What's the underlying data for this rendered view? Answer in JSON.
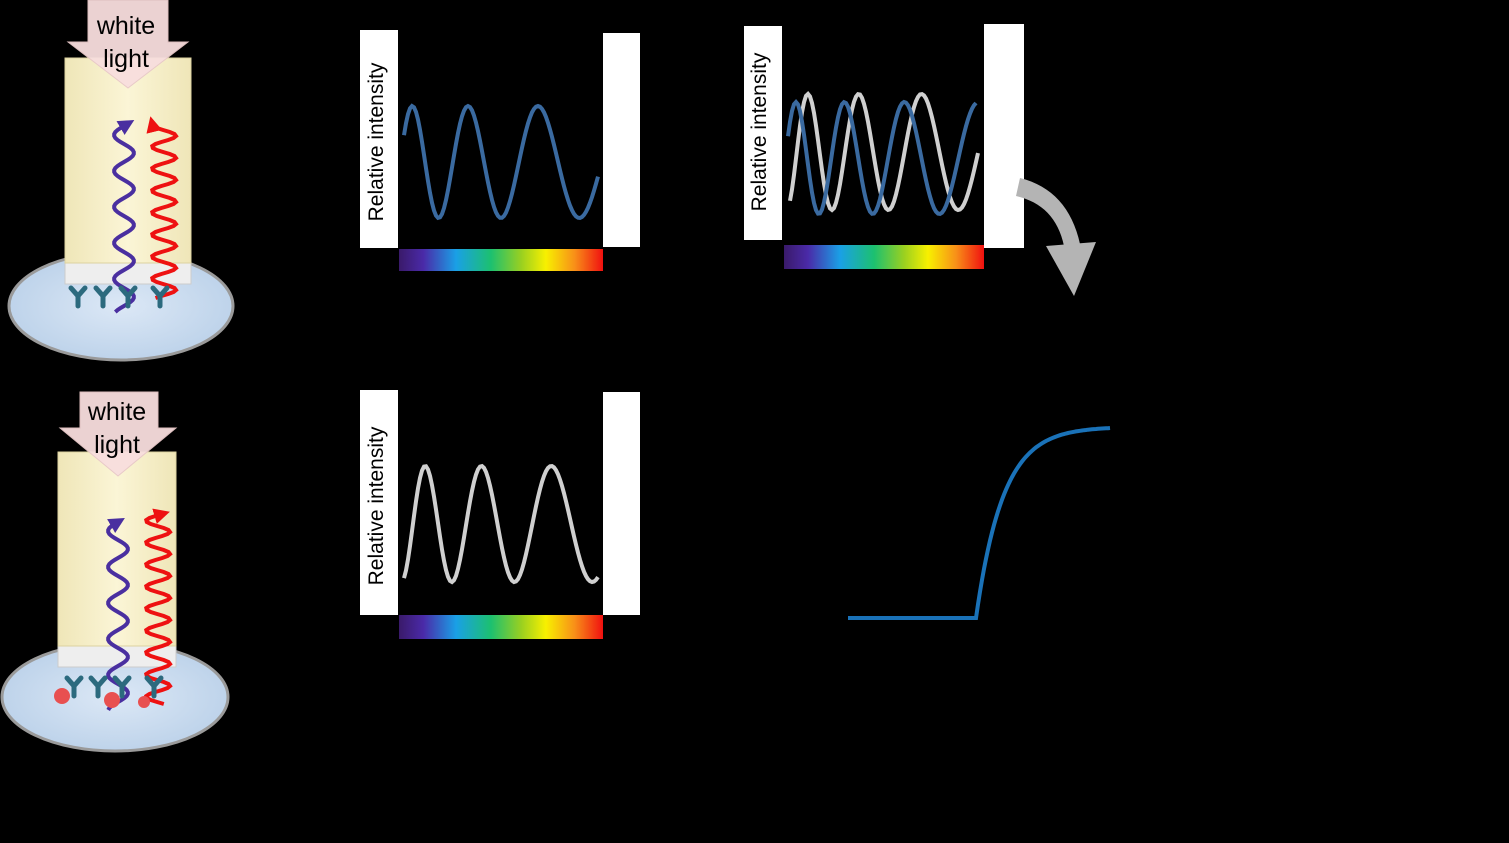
{
  "colors": {
    "background": "#000000",
    "sensor_fill": "#f8f0c8",
    "plate_fill": "#c8dcf0",
    "arrow_fill": "#f8dede",
    "reflected_blue": "#4a2fa0",
    "reflected_red": "#ee1111",
    "spectrum_blue": "#3a6aa0",
    "spectrum_gray": "#d0d0d0",
    "antibody": "#2c6a7e",
    "analyte": "#e85050",
    "binding_curve": "#1a72b8",
    "process_arrow": "#b4b4b4"
  },
  "icons": {
    "light_arrow": "down-arrow-icon",
    "process_arrow": "curved-arrow-icon",
    "antibody": "antibody-icon",
    "analyte": "analyte-dot-icon"
  },
  "top_panel": {
    "light_label_line1": "white",
    "light_label_line2": "light",
    "spectrum_ylabel": "Relative intensity",
    "shift_ylabel": "Relative intensity"
  },
  "bottom_panel": {
    "light_label_line1": "white",
    "light_label_line2": "light",
    "spectrum_ylabel": "Relative intensity"
  }
}
